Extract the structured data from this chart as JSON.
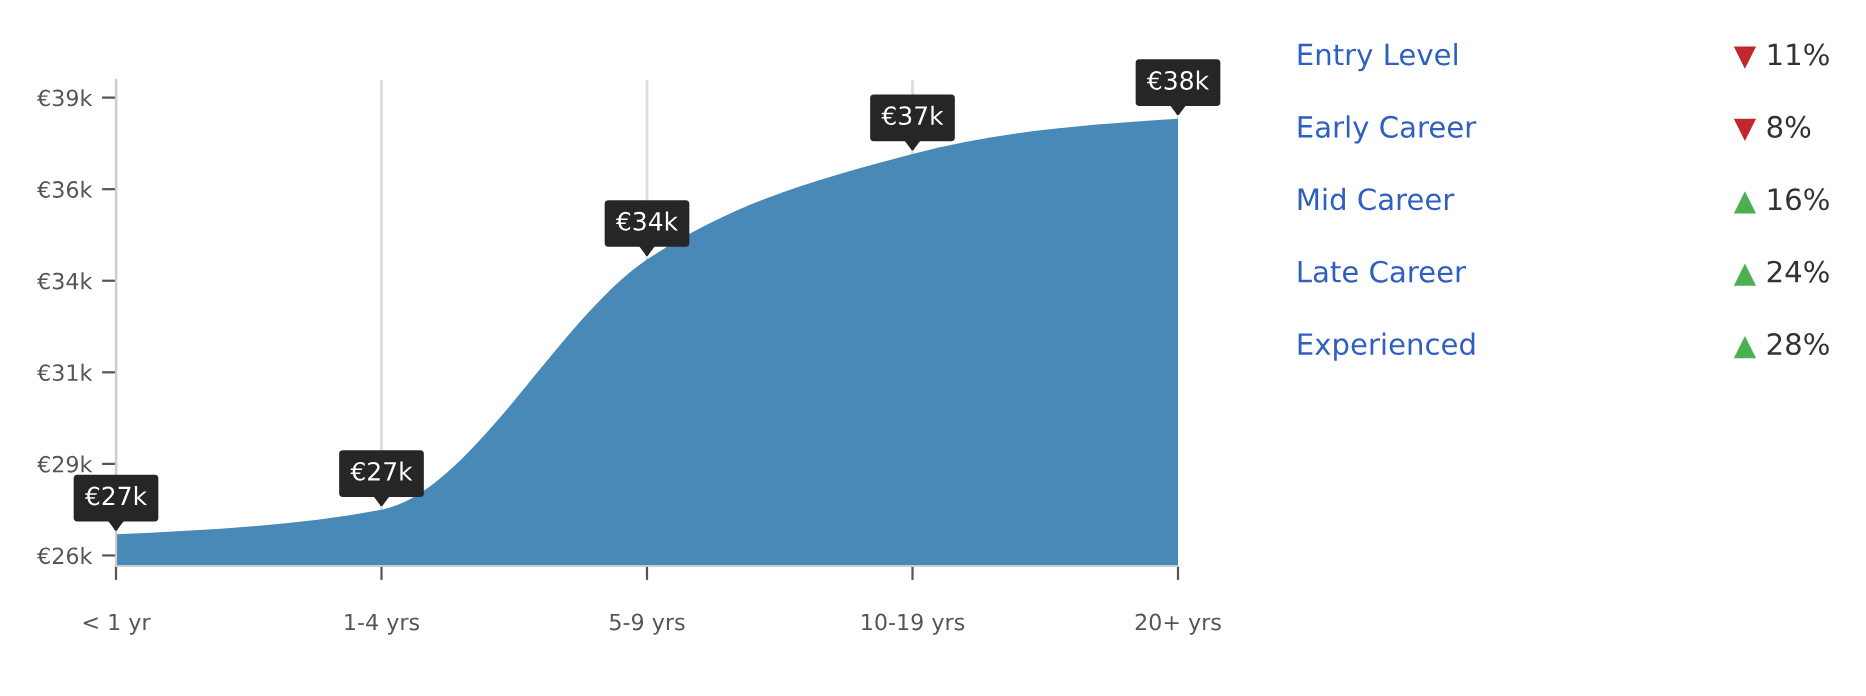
{
  "chart_data": [
    {
      "type": "area",
      "categories": [
        "< 1 yr",
        "1-4 yrs",
        "5-9 yrs",
        "10-19 yrs",
        "20+ yrs"
      ],
      "series": [
        {
          "color": "#4889b8",
          "values": [
            26.6,
            27.3,
            34.4,
            37.4,
            38.4
          ],
          "value_labels": [
            "€27k",
            "€27k",
            "€34k",
            "€37k",
            "€38k"
          ]
        }
      ],
      "ylim": [
        25.7,
        39.5
      ],
      "yticks": [
        {
          "value": 26.0,
          "label": "€26k"
        },
        {
          "value": 28.6,
          "label": "€29k"
        },
        {
          "value": 31.2,
          "label": "€31k"
        },
        {
          "value": 33.8,
          "label": "€34k"
        },
        {
          "value": 36.4,
          "label": "€36k"
        },
        {
          "value": 39.0,
          "label": "€39k"
        }
      ],
      "grid": "x"
    },
    {
      "type": "other",
      "categories": [
        "Entry Level",
        "Early Career",
        "Mid Career",
        "Late Career",
        "Experienced"
      ],
      "value_labels": [
        "▼ 11%",
        "▼ 8%",
        "▲ 16%",
        "▲ 24%",
        "▲ 28%"
      ],
      "colors": [
        "#c0282d",
        "#c0282d",
        "#4caf50",
        "#4caf50",
        "#4caf50"
      ]
    }
  ]
}
